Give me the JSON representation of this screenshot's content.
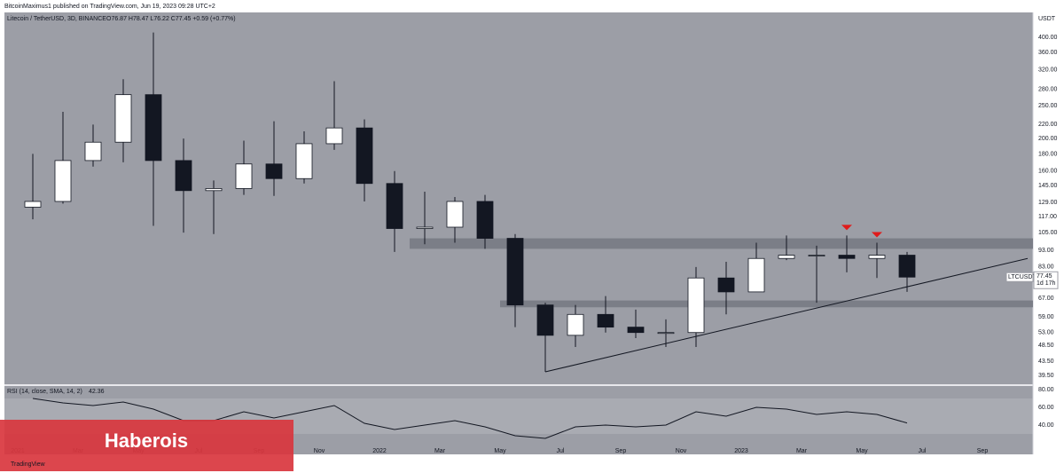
{
  "header": "BitcoinMaximus1 published on TradingView.com, Jun 19, 2023 09:28 UTC+2",
  "watermark": "Haberois",
  "brand": "TradingView",
  "chart_data": [
    {
      "type": "candlestick",
      "title": "Litecoin / TetherUSD, 3D, BINANCE",
      "legend_values": "O76.87 H78.47 L76.22 C77.45 +0.59 (+0.77%)",
      "symbol": "LTCUSDT",
      "countdown": "1d 17h",
      "y_label": "USDT",
      "x": [
        "2021-01",
        "2021-02",
        "2021-03",
        "2021-04",
        "2021-05",
        "2021-06",
        "2021-07",
        "2021-08",
        "2021-09",
        "2021-10",
        "2021-11",
        "2021-12",
        "2022-01",
        "2022-02",
        "2022-03",
        "2022-04",
        "2022-05",
        "2022-06",
        "2022-07",
        "2022-08",
        "2022-09",
        "2022-10",
        "2022-11",
        "2022-12",
        "2023-01",
        "2023-02",
        "2023-03",
        "2023-04",
        "2023-05",
        "2023-06"
      ],
      "open": [
        125,
        130,
        172,
        195,
        270,
        172,
        140,
        142,
        168,
        152,
        193,
        215,
        147,
        108,
        109,
        130,
        101,
        64,
        52,
        60,
        55,
        53,
        53,
        77,
        70,
        88,
        90,
        90,
        88,
        90
      ],
      "high": [
        180,
        240,
        220,
        300,
        413,
        200,
        150,
        197,
        225,
        210,
        296,
        228,
        160,
        139,
        134,
        136,
        104,
        65,
        64,
        68,
        62,
        58,
        83,
        86,
        98,
        103,
        96,
        103,
        98,
        92
      ],
      "low": [
        115,
        128,
        165,
        170,
        110,
        105,
        104,
        136,
        135,
        147,
        185,
        130,
        92,
        97,
        98,
        94,
        55,
        40.5,
        48,
        53,
        51,
        48,
        48,
        60,
        70,
        87,
        65,
        80,
        77,
        70
      ],
      "close": [
        130,
        172,
        195,
        270,
        172,
        140,
        142,
        168,
        152,
        193,
        215,
        147,
        108,
        109,
        130,
        101,
        64,
        52,
        60,
        55,
        53,
        53,
        77,
        70,
        88,
        90,
        90,
        88,
        90,
        77.45
      ],
      "up_color": "#ffffff",
      "down_color": "#131722",
      "log_scale": true,
      "ylim": [
        37.2,
        474
      ],
      "yticks": [
        {
          "value": 400,
          "label": "400.00"
        },
        {
          "value": 360,
          "label": "360.00"
        },
        {
          "value": 320,
          "label": "320.00"
        },
        {
          "value": 280,
          "label": "280.00"
        },
        {
          "value": 250,
          "label": "250.00"
        },
        {
          "value": 220,
          "label": "220.00"
        },
        {
          "value": 200,
          "label": "200.00"
        },
        {
          "value": 180,
          "label": "180.00"
        },
        {
          "value": 160,
          "label": "160.00"
        },
        {
          "value": 145,
          "label": "145.00"
        },
        {
          "value": 129,
          "label": "129.00"
        },
        {
          "value": 117,
          "label": "117.00"
        },
        {
          "value": 105,
          "label": "105.00"
        },
        {
          "value": 93,
          "label": "93.00"
        },
        {
          "value": 83,
          "label": "83.00"
        },
        {
          "value": 67,
          "label": "67.00"
        },
        {
          "value": 59,
          "label": "59.00"
        },
        {
          "value": 53,
          "label": "53.00"
        },
        {
          "value": 48.5,
          "label": "48.50"
        },
        {
          "value": 43.5,
          "label": "43.50"
        },
        {
          "value": 39.5,
          "label": "39.50"
        }
      ],
      "xticks": [
        {
          "value": "2021-01",
          "label": "2021"
        },
        {
          "value": "2021-03",
          "label": "Mar"
        },
        {
          "value": "2021-05",
          "label": "May"
        },
        {
          "value": "2021-07",
          "label": "Jul"
        },
        {
          "value": "2021-09",
          "label": "Sep"
        },
        {
          "value": "2021-11",
          "label": "Nov"
        },
        {
          "value": "2022-01",
          "label": "2022"
        },
        {
          "value": "2022-03",
          "label": "Mar"
        },
        {
          "value": "2022-05",
          "label": "May"
        },
        {
          "value": "2022-07",
          "label": "Jul"
        },
        {
          "value": "2022-09",
          "label": "Sep"
        },
        {
          "value": "2022-11",
          "label": "Nov"
        },
        {
          "value": "2023-01",
          "label": "2023"
        },
        {
          "value": "2023-03",
          "label": "Mar"
        },
        {
          "value": "2023-05",
          "label": "May"
        },
        {
          "value": "2023-07",
          "label": "Jul"
        },
        {
          "value": "2023-09",
          "label": "Sep"
        }
      ],
      "zones": [
        {
          "start": "2022-02",
          "low": 94,
          "high": 101
        },
        {
          "start": "2022-05",
          "low": 63,
          "high": 66
        }
      ],
      "zone_color": "#7b7e87",
      "trendline": {
        "x": [
          "2022-06",
          "2023-10"
        ],
        "y": [
          40.5,
          88
        ]
      },
      "markers": {
        "x": [
          "2023-04",
          "2023-05"
        ],
        "y": [
          103,
          98
        ],
        "color": "#e01b1b"
      },
      "background": "#9c9ea6"
    },
    {
      "type": "line",
      "title": "RSI (14, close, SMA, 14, 2)",
      "x": [
        "2021-01",
        "2021-02",
        "2021-03",
        "2021-04",
        "2021-05",
        "2021-06",
        "2021-07",
        "2021-08",
        "2021-09",
        "2021-10",
        "2021-11",
        "2021-12",
        "2022-01",
        "2022-02",
        "2022-03",
        "2022-04",
        "2022-05",
        "2022-06",
        "2022-07",
        "2022-08",
        "2022-09",
        "2022-10",
        "2022-11",
        "2022-12",
        "2023-01",
        "2023-02",
        "2023-03",
        "2023-04",
        "2023-05",
        "2023-06"
      ],
      "values": [
        70,
        65,
        62,
        66,
        58,
        45,
        45,
        55,
        48,
        55,
        62,
        42,
        35,
        40,
        45,
        38,
        28,
        25,
        38,
        40,
        38,
        40,
        55,
        50,
        60,
        58,
        52,
        55,
        52,
        42.36
      ],
      "color": "#131722",
      "band": [
        30,
        70
      ],
      "ylim": [
        7,
        84
      ],
      "yticks": [
        {
          "value": 80,
          "label": "80.00"
        },
        {
          "value": 60,
          "label": "60.00"
        },
        {
          "value": 40,
          "label": "40.00"
        }
      ]
    }
  ]
}
